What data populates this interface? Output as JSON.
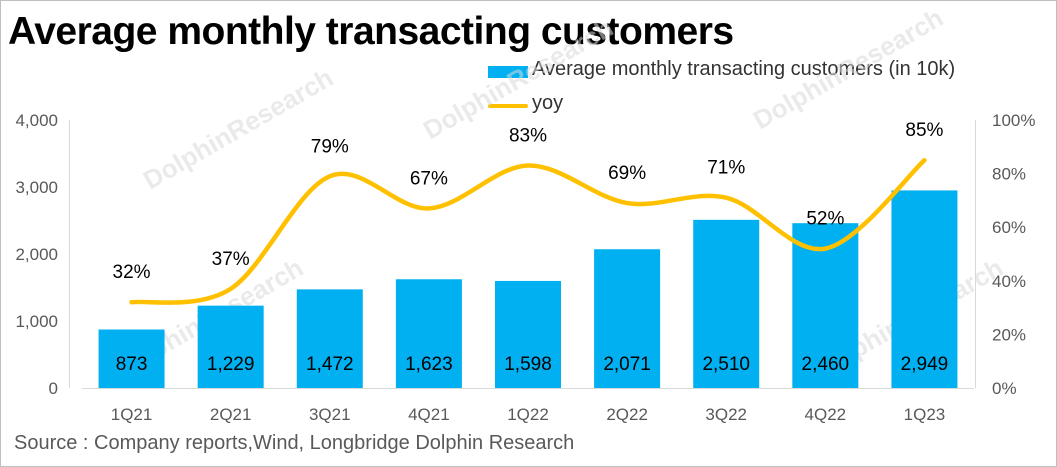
{
  "page": {
    "source": "Source : Company reports,Wind, Longbridge Dolphin Research"
  },
  "chart_data": {
    "type": "bar",
    "title": "Average monthly transacting customers",
    "categories": [
      "1Q21",
      "2Q21",
      "3Q21",
      "4Q21",
      "1Q22",
      "2Q22",
      "3Q22",
      "4Q22",
      "1Q23"
    ],
    "series": [
      {
        "name": "Average monthly transacting customers (in 10k)",
        "type": "bar",
        "axis": "left",
        "values": [
          873,
          1229,
          1472,
          1623,
          1598,
          2071,
          2510,
          2460,
          2949
        ],
        "labels": [
          "873",
          "1,229",
          "1,472",
          "1,623",
          "1,598",
          "2,071",
          "2,510",
          "2,460",
          "2,949"
        ]
      },
      {
        "name": "yoy",
        "type": "line",
        "axis": "right",
        "values": [
          32,
          37,
          79,
          67,
          83,
          69,
          71,
          52,
          85
        ],
        "labels": [
          "32%",
          "37%",
          "79%",
          "67%",
          "83%",
          "69%",
          "71%",
          "52%",
          "85%"
        ]
      }
    ],
    "y_left": {
      "min": 0,
      "max": 4000,
      "ticks": [
        0,
        1000,
        2000,
        3000,
        4000
      ],
      "tick_labels": [
        "0",
        "1,000",
        "2,000",
        "3,000",
        "4,000"
      ]
    },
    "y_right": {
      "min": 0,
      "max": 100,
      "ticks": [
        0,
        20,
        40,
        60,
        80,
        100
      ],
      "tick_labels": [
        "0%",
        "20%",
        "40%",
        "60%",
        "80%",
        "100%"
      ]
    },
    "xlabel": "",
    "ylabel": "",
    "legend_position": "top-right",
    "grid": false,
    "colors": {
      "bar": "#00b0f0",
      "line": "#ffc000",
      "axis": "#d9d9d9"
    }
  }
}
